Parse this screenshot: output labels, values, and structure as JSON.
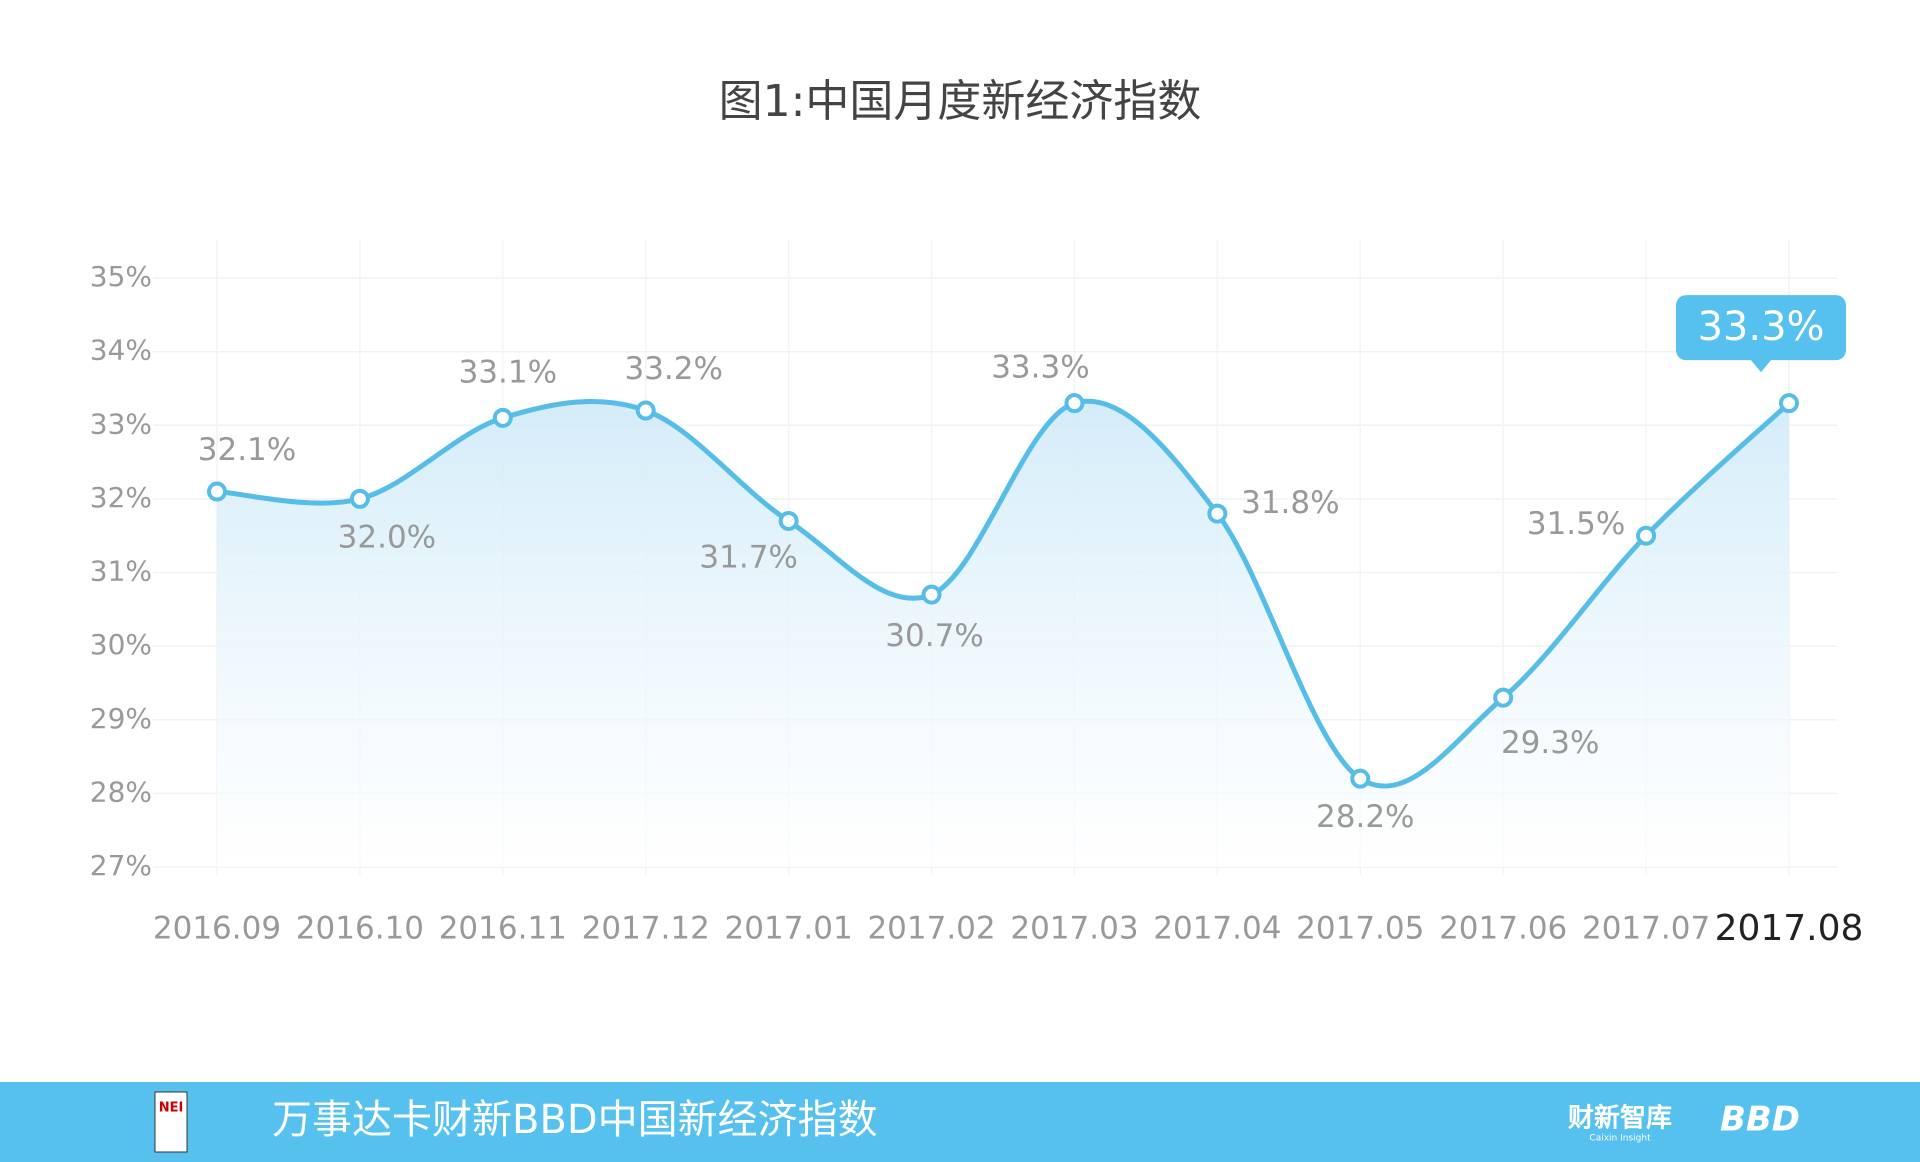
{
  "chart_data": {
    "type": "line",
    "title": "图1:中国月度新经济指数",
    "categories": [
      "2016.09",
      "2016.10",
      "2016.11",
      "2017.12",
      "2017.01",
      "2017.02",
      "2017.03",
      "2017.04",
      "2017.05",
      "2017.06",
      "2017.07",
      "2017.08"
    ],
    "series": [
      {
        "name": "中国月度新经济指数",
        "color": "#56bde8",
        "values": [
          32.1,
          32.0,
          33.1,
          33.2,
          31.7,
          30.7,
          33.3,
          31.8,
          28.2,
          29.3,
          31.5,
          33.3
        ],
        "value_labels": [
          "32.1%",
          "32.0%",
          "33.1%",
          "33.2%",
          "31.7%",
          "30.7%",
          "33.3%",
          "31.8%",
          "28.2%",
          "29.3%",
          "31.5%",
          "33.3%"
        ]
      }
    ],
    "ylim": [
      27,
      35
    ],
    "yticks": [
      {
        "value": 27,
        "label": "27%"
      },
      {
        "value": 28,
        "label": "28%"
      },
      {
        "value": 29,
        "label": "29%"
      },
      {
        "value": 30,
        "label": "30%"
      },
      {
        "value": 31,
        "label": "31%"
      },
      {
        "value": 32,
        "label": "32%"
      },
      {
        "value": 33,
        "label": "33%"
      },
      {
        "value": 34,
        "label": "34%"
      },
      {
        "value": 35,
        "label": "35%"
      }
    ],
    "grid": true
  },
  "footer": {
    "title": "万事达卡财新BBD中国新经济指数",
    "logo_nei": "NEI",
    "logo_caixin": "财新智库",
    "logo_caixin_en": "Caixin Insight",
    "logo_bbd": "BBD"
  }
}
